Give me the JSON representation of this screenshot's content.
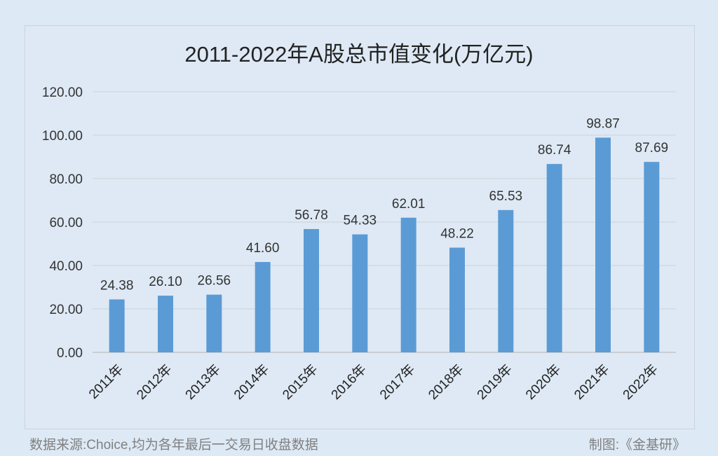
{
  "chart_data": {
    "type": "bar",
    "title": "2011-2022年A股总市值变化(万亿元)",
    "categories": [
      "2011年",
      "2012年",
      "2013年",
      "2014年",
      "2015年",
      "2016年",
      "2017年",
      "2018年",
      "2019年",
      "2020年",
      "2021年",
      "2022年"
    ],
    "values": [
      24.38,
      26.1,
      26.56,
      41.6,
      56.78,
      54.33,
      62.01,
      48.22,
      65.53,
      86.74,
      98.87,
      87.69
    ],
    "data_labels": [
      "24.38",
      "26.10",
      "26.56",
      "41.60",
      "56.78",
      "54.33",
      "62.01",
      "48.22",
      "65.53",
      "86.74",
      "98.87",
      "87.69"
    ],
    "yticks": [
      "0.00",
      "20.00",
      "40.00",
      "60.00",
      "80.00",
      "100.00",
      "120.00"
    ],
    "ylim": [
      0,
      120
    ],
    "grid": true,
    "xlabel": "",
    "ylabel": "",
    "bar_color": "#5b9bd5"
  },
  "footer": {
    "source": "数据来源:Choice,均为各年最后一交易日收盘数据",
    "credit": "制图:《金基研》"
  }
}
